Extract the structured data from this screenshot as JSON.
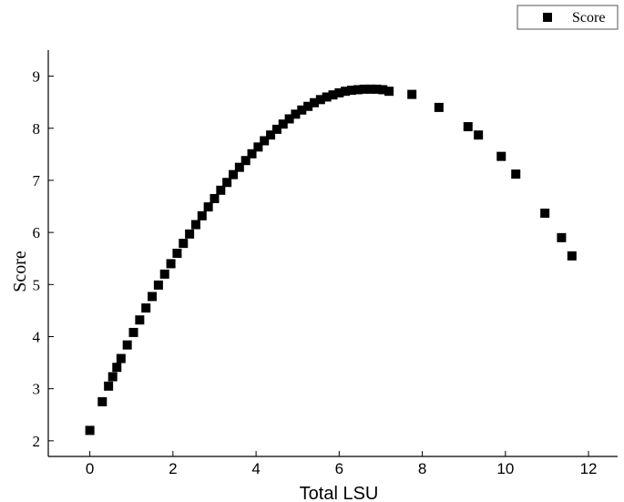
{
  "chart_data": {
    "type": "scatter",
    "xlabel": "Total LSU",
    "ylabel": "Score",
    "xlim": [
      -1,
      12.7
    ],
    "ylim": [
      1.7,
      9.5
    ],
    "x_ticks": [
      "0",
      "2",
      "4",
      "6",
      "8",
      "10",
      "12"
    ],
    "y_ticks": [
      "2",
      "3",
      "4",
      "5",
      "6",
      "7",
      "8",
      "9"
    ],
    "x_tick_values": [
      0,
      2,
      4,
      6,
      8,
      10,
      12
    ],
    "y_tick_values": [
      2,
      3,
      4,
      5,
      6,
      7,
      8,
      9
    ],
    "grid": false,
    "legend_position": "top-right",
    "marker_color": "#000000",
    "series": [
      {
        "name": "Score",
        "marker": "square",
        "x": [
          0,
          0.3,
          0.45,
          0.55,
          0.65,
          0.75,
          0.9,
          1.05,
          1.2,
          1.35,
          1.5,
          1.65,
          1.8,
          1.95,
          2.1,
          2.25,
          2.4,
          2.55,
          2.7,
          2.85,
          3.0,
          3.15,
          3.3,
          3.45,
          3.6,
          3.75,
          3.9,
          4.05,
          4.2,
          4.35,
          4.5,
          4.65,
          4.8,
          4.95,
          5.1,
          5.25,
          5.4,
          5.55,
          5.7,
          5.85,
          6.0,
          6.15,
          6.3,
          6.45,
          6.6,
          6.75,
          6.9,
          7.05,
          7.2,
          7.75,
          8.4,
          9.1,
          9.35,
          9.9,
          10.25,
          10.95,
          11.35,
          11.6
        ],
        "y": [
          2.2,
          2.75,
          3.05,
          3.23,
          3.41,
          3.58,
          3.84,
          4.08,
          4.32,
          4.55,
          4.77,
          4.99,
          5.2,
          5.4,
          5.6,
          5.79,
          5.97,
          6.15,
          6.32,
          6.49,
          6.65,
          6.81,
          6.96,
          7.11,
          7.25,
          7.38,
          7.51,
          7.64,
          7.76,
          7.87,
          7.98,
          8.08,
          8.18,
          8.27,
          8.35,
          8.42,
          8.49,
          8.55,
          8.6,
          8.64,
          8.68,
          8.71,
          8.73,
          8.74,
          8.75,
          8.75,
          8.75,
          8.74,
          8.71,
          8.65,
          8.4,
          8.03,
          7.87,
          7.46,
          7.12,
          6.37,
          5.9,
          5.55
        ]
      }
    ]
  }
}
